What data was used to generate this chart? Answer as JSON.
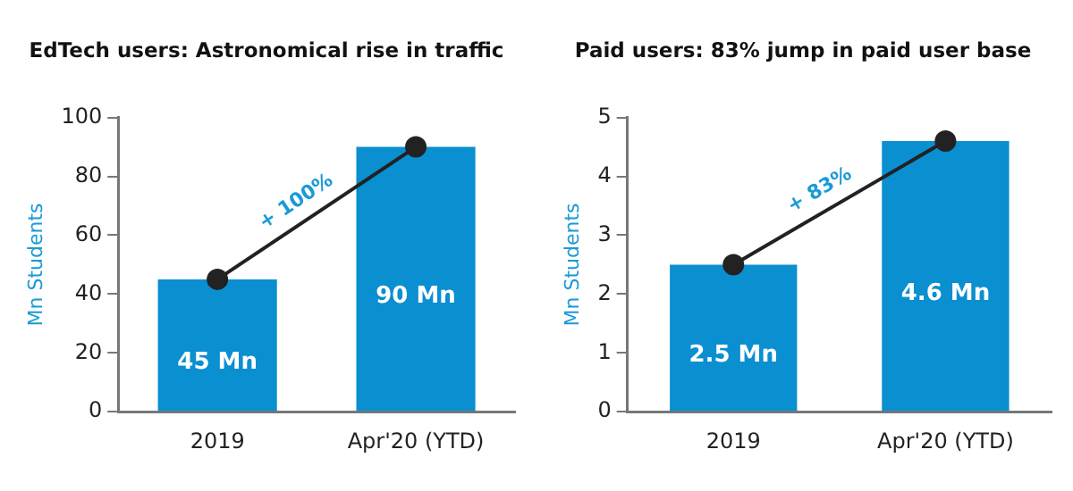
{
  "chart_data": [
    {
      "type": "bar",
      "title": "EdTech users: Astronomical rise in traffic",
      "ylabel": "Mn Students",
      "categories": [
        "2019",
        "Apr'20 (YTD)"
      ],
      "series": [
        {
          "color": "#0a8fd0",
          "values": [
            45,
            90
          ],
          "value_labels": [
            "45 Mn",
            "90 Mn"
          ]
        },
        {
          "type": "line",
          "color": "#222222",
          "values": [
            45,
            90
          ]
        }
      ],
      "ylim": [
        0,
        100
      ],
      "yticks": [
        0,
        20,
        40,
        60,
        80,
        100
      ],
      "grid": false,
      "legend": false,
      "marker": "circle",
      "annotations": [
        "+ 100%"
      ]
    },
    {
      "type": "bar",
      "title": "Paid users: 83% jump in paid user base",
      "ylabel": "Mn Students",
      "categories": [
        "2019",
        "Apr'20 (YTD)"
      ],
      "series": [
        {
          "color": "#0a8fd0",
          "values": [
            2.5,
            4.6
          ],
          "value_labels": [
            "2.5 Mn",
            "4.6 Mn"
          ]
        },
        {
          "type": "line",
          "color": "#222222",
          "values": [
            2.5,
            4.6
          ]
        }
      ],
      "ylim": [
        0,
        5
      ],
      "yticks": [
        0,
        1,
        2,
        3,
        4,
        5
      ],
      "grid": false,
      "legend": false,
      "marker": "circle",
      "annotations": [
        "+ 83%"
      ]
    }
  ]
}
